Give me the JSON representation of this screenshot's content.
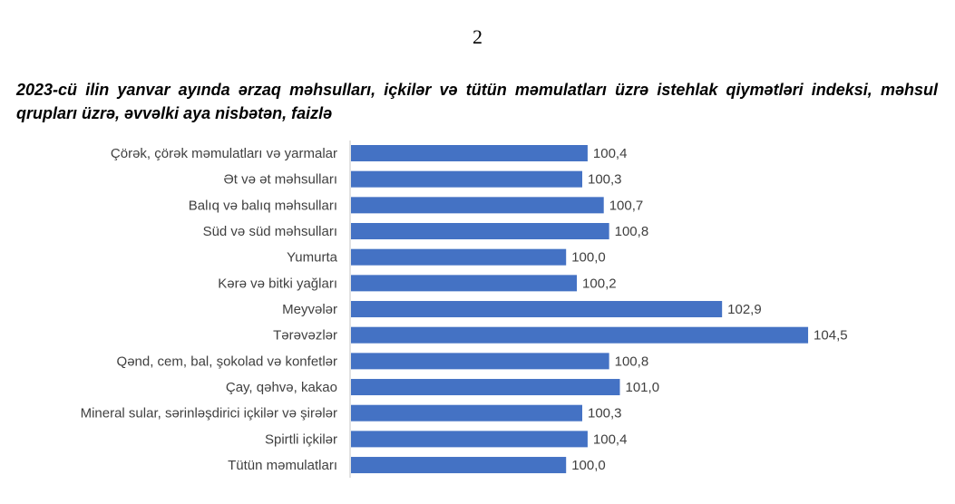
{
  "page_number": "2",
  "chart_data": {
    "type": "bar",
    "orientation": "horizontal",
    "title": "2023-cü ilin yanvar ayında ərzaq məhsulları, içkilər və tütün məmulatları üzrə istehlak qiymətləri indeksi, məhsul qrupları üzrə, əvvəlki aya nisbətən, faizlə",
    "categories": [
      "Çörək, çörək məmulatları və yarmalar",
      "Ət və ət məhsulları",
      "Balıq və balıq məhsulları",
      "Süd və süd məhsulları",
      "Yumurta",
      "Kərə və bitki yağları",
      "Meyvələr",
      "Tərəvəzlər",
      "Qənd, cem, bal, şokolad və konfetlər",
      "Çay, qəhvə, kakao",
      "Mineral sular, sərinləşdirici içkilər və şirələr",
      "Spirtli içkilər",
      "Tütün məmulatları"
    ],
    "values": [
      100.4,
      100.3,
      100.7,
      100.8,
      100.0,
      100.2,
      102.9,
      104.5,
      100.8,
      101.0,
      100.3,
      100.4,
      100.0
    ],
    "data_labels": [
      "100,4",
      "100,3",
      "100,7",
      "100,8",
      "100,0",
      "100,2",
      "102,9",
      "104,5",
      "100,8",
      "101,0",
      "100,3",
      "100,4",
      "100,0"
    ],
    "xlim": [
      96,
      105
    ],
    "xlabel": "",
    "ylabel": "",
    "grid": false,
    "legend": "none",
    "bar_color": "#4472C4"
  }
}
